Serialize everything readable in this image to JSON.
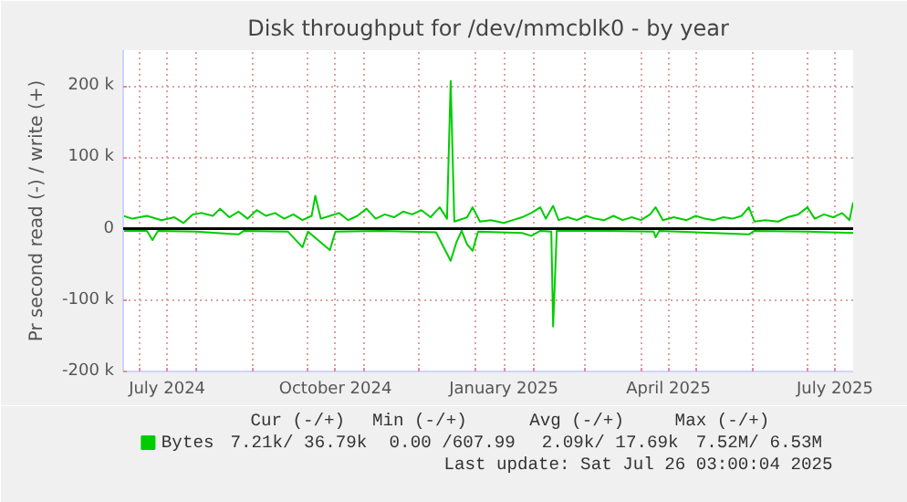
{
  "chart_data": {
    "type": "line",
    "title": "Disk throughput for /dev/mmcblk0 - by year",
    "ylabel": "Pr second read (-) / write (+)",
    "xlim": [
      "2024-06-22",
      "2025-07-26"
    ],
    "ylim": [
      -200000,
      250000
    ],
    "xticks": [
      {
        "value": "2024-07-01",
        "label": null
      },
      {
        "value": "2024-07-16",
        "label": "July 2024"
      },
      {
        "value": "2024-08-01",
        "label": null
      },
      {
        "value": "2024-09-01",
        "label": null
      },
      {
        "value": "2024-10-01",
        "label": null
      },
      {
        "value": "2024-10-16",
        "label": "October 2024"
      },
      {
        "value": "2024-11-01",
        "label": null
      },
      {
        "value": "2024-12-01",
        "label": null
      },
      {
        "value": "2025-01-01",
        "label": null
      },
      {
        "value": "2025-01-16",
        "label": "January 2025"
      },
      {
        "value": "2025-02-01",
        "label": null
      },
      {
        "value": "2025-03-01",
        "label": null
      },
      {
        "value": "2025-04-01",
        "label": null
      },
      {
        "value": "2025-04-16",
        "label": "April 2025"
      },
      {
        "value": "2025-05-01",
        "label": null
      },
      {
        "value": "2025-06-01",
        "label": null
      },
      {
        "value": "2025-07-01",
        "label": null
      },
      {
        "value": "2025-07-16",
        "label": "July 2025"
      }
    ],
    "yticks": [
      {
        "value": -200000,
        "label": "-200 k"
      },
      {
        "value": -100000,
        "label": "-100 k"
      },
      0,
      {
        "value": 100000,
        "label": "100 k"
      },
      {
        "value": 200000,
        "label": "200 k"
      }
    ],
    "grid": true,
    "legend": "bottom left",
    "series": [
      {
        "name": "Bytes",
        "color": "#00cc00",
        "x": [
          "2024-06-22",
          "2024-06-27",
          "2024-07-05",
          "2024-07-13",
          "2024-07-20",
          "2024-07-25",
          "2024-07-30",
          "2024-08-04",
          "2024-08-10",
          "2024-08-14",
          "2024-08-19",
          "2024-08-24",
          "2024-08-29",
          "2024-09-03",
          "2024-09-08",
          "2024-09-13",
          "2024-09-18",
          "2024-09-23",
          "2024-09-28",
          "2024-10-03",
          "2024-10-05",
          "2024-10-08",
          "2024-10-13",
          "2024-10-18",
          "2024-10-23",
          "2024-10-28",
          "2024-11-02",
          "2024-11-07",
          "2024-11-12",
          "2024-11-17",
          "2024-11-22",
          "2024-11-27",
          "2024-12-02",
          "2024-12-07",
          "2024-12-12",
          "2024-12-16",
          "2024-12-18",
          "2024-12-20",
          "2024-12-27",
          "2024-12-30",
          "2025-01-03",
          "2025-01-09",
          "2025-01-16",
          "2025-01-21",
          "2025-01-26",
          "2025-01-31",
          "2025-02-05",
          "2025-02-08",
          "2025-02-12",
          "2025-02-15",
          "2025-02-20",
          "2025-02-25",
          "2025-03-02",
          "2025-03-07",
          "2025-03-12",
          "2025-03-17",
          "2025-03-22",
          "2025-03-27",
          "2025-04-01",
          "2025-04-06",
          "2025-04-09",
          "2025-04-13",
          "2025-04-19",
          "2025-04-26",
          "2025-05-01",
          "2025-05-06",
          "2025-05-11",
          "2025-05-16",
          "2025-05-21",
          "2025-05-26",
          "2025-05-30",
          "2025-06-02",
          "2025-06-08",
          "2025-06-15",
          "2025-06-20",
          "2025-06-26",
          "2025-07-01",
          "2025-07-05",
          "2025-07-10",
          "2025-07-15",
          "2025-07-20",
          "2025-07-24",
          "2025-07-26"
        ],
        "values": [
          18000,
          14000,
          18000,
          12000,
          16000,
          8000,
          20000,
          22000,
          18000,
          28000,
          16000,
          24000,
          14000,
          26000,
          18000,
          22000,
          14000,
          20000,
          12000,
          18000,
          46000,
          14000,
          18000,
          22000,
          12000,
          18000,
          28000,
          14000,
          20000,
          16000,
          24000,
          20000,
          26000,
          16000,
          30000,
          14000,
          207000,
          10000,
          16000,
          30000,
          10000,
          12000,
          8000,
          12000,
          16000,
          22000,
          30000,
          14000,
          32000,
          12000,
          16000,
          12000,
          18000,
          14000,
          12000,
          18000,
          12000,
          16000,
          12000,
          20000,
          30000,
          12000,
          16000,
          12000,
          18000,
          14000,
          12000,
          16000,
          14000,
          18000,
          30000,
          10000,
          12000,
          10000,
          16000,
          20000,
          30000,
          14000,
          20000,
          16000,
          22000,
          12000,
          37000
        ]
      },
      {
        "color": "#00cc00",
        "x": [
          "2024-06-22",
          "2024-07-05",
          "2024-07-08",
          "2024-07-11",
          "2024-08-01",
          "2024-08-24",
          "2024-08-27",
          "2024-09-20",
          "2024-09-28",
          "2024-10-01",
          "2024-10-13",
          "2024-10-16",
          "2024-11-10",
          "2024-12-10",
          "2024-12-18",
          "2024-12-21",
          "2024-12-24",
          "2024-12-27",
          "2024-12-30",
          "2025-01-02",
          "2025-01-26",
          "2025-01-31",
          "2025-02-05",
          "2025-02-11",
          "2025-02-12",
          "2025-02-14",
          "2025-03-15",
          "2025-04-08",
          "2025-04-09",
          "2025-04-11",
          "2025-05-30",
          "2025-06-02",
          "2025-07-01",
          "2025-07-26"
        ],
        "values": [
          -3000,
          -3000,
          -16000,
          -3000,
          -4000,
          -8000,
          -3000,
          -4000,
          -26000,
          -4000,
          -30000,
          -4000,
          -3000,
          -5000,
          -45000,
          -20000,
          -3000,
          -22000,
          -31000,
          -4000,
          -6000,
          -10000,
          -3000,
          -4000,
          -137000,
          -3000,
          -3000,
          -4000,
          -12000,
          -3000,
          -8000,
          -3000,
          -4000,
          -6000
        ]
      }
    ],
    "annotations": [
      "Cur (-/+)",
      "Min (-/+)",
      "Avg (-/+)",
      "Max (-/+)",
      "7.21k/ 36.79k",
      "0.00 /607.99",
      "2.09k/ 17.69k",
      "7.52M/  6.53M",
      "Last update: Sat Jul 26 03:00:04 2025"
    ]
  }
}
